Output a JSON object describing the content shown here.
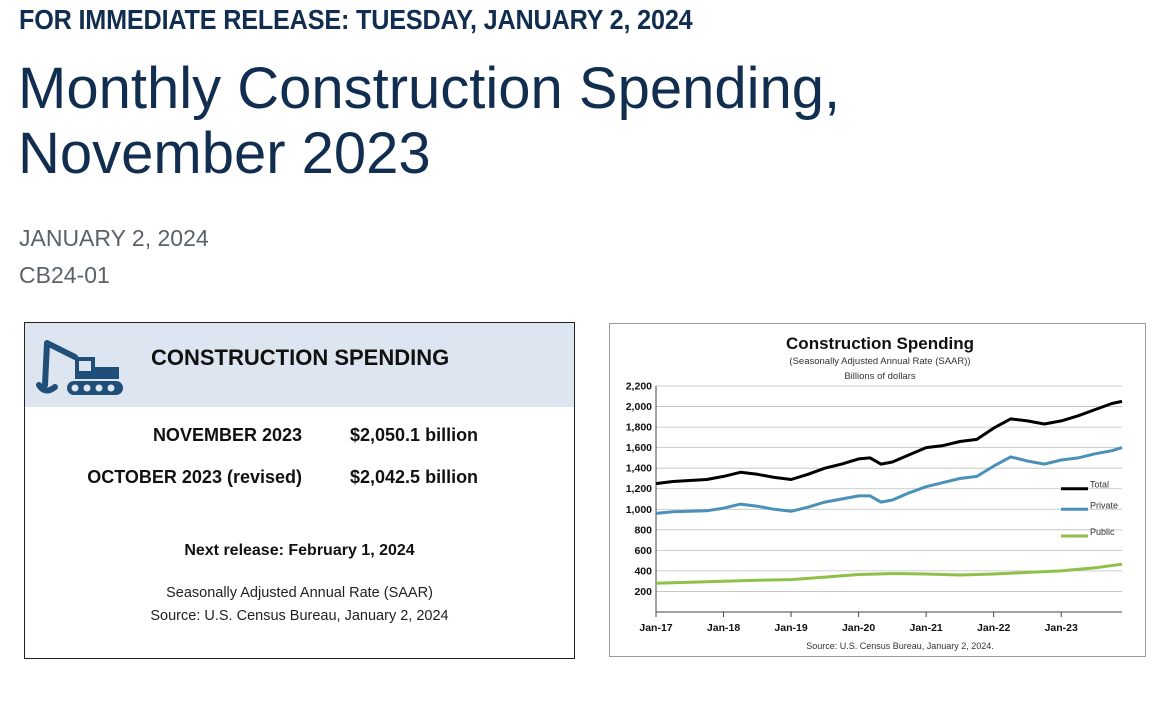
{
  "release_line": "FOR IMMEDIATE RELEASE: TUESDAY, JANUARY 2, 2024",
  "headline": "Monthly Construction Spending, November 2023",
  "date": "JANUARY 2, 2024",
  "release_code": "CB24-01",
  "info_box": {
    "title": "CONSTRUCTION SPENDING",
    "icon": "excavator-icon",
    "rows": [
      {
        "label": "NOVEMBER 2023",
        "value": "$2,050.1 billion"
      },
      {
        "label": "OCTOBER 2023 (revised)",
        "value": "$2,042.5 billion"
      }
    ],
    "next_release": "Next release: February 1, 2024",
    "footnote_1": "Seasonally Adjusted Annual Rate (SAAR)",
    "footnote_2": "Source: U.S. Census Bureau, January 2, 2024",
    "header_color": "#dde5f1",
    "icon_color": "#1f4e79"
  },
  "chart_data": {
    "type": "line",
    "title": "Construction Spending",
    "subtitle": "(Seasonally Adjusted Annual Rate (SAAR))",
    "ylabel": "Billions of dollars",
    "source": "Source: U.S. Census Bureau, January 2, 2024.",
    "ylim": [
      0,
      2200
    ],
    "yticks": [
      200,
      400,
      600,
      800,
      "1,000",
      "1,200",
      "1,400",
      "1,600",
      "1,800",
      "2,000",
      "2,200"
    ],
    "ytick_values": [
      200,
      400,
      600,
      800,
      1000,
      1200,
      1400,
      1600,
      1800,
      2000,
      2200
    ],
    "xticks": [
      "Jan-17",
      "Jan-18",
      "Jan-19",
      "Jan-20",
      "Jan-21",
      "Jan-22",
      "Jan-23"
    ],
    "xlim": [
      2017.0,
      2023.9
    ],
    "grid": true,
    "legend": "right",
    "series": [
      {
        "name": "Total",
        "color": "#000000",
        "x": [
          2017.0,
          2017.25,
          2017.5,
          2017.75,
          2018.0,
          2018.25,
          2018.5,
          2018.75,
          2019.0,
          2019.25,
          2019.5,
          2019.75,
          2020.0,
          2020.17,
          2020.33,
          2020.5,
          2020.75,
          2021.0,
          2021.25,
          2021.5,
          2021.75,
          2022.0,
          2022.25,
          2022.5,
          2022.75,
          2023.0,
          2023.25,
          2023.5,
          2023.75,
          2023.9
        ],
        "values": [
          1250,
          1270,
          1280,
          1290,
          1320,
          1360,
          1340,
          1310,
          1290,
          1340,
          1400,
          1440,
          1490,
          1500,
          1440,
          1460,
          1530,
          1600,
          1620,
          1660,
          1680,
          1790,
          1880,
          1860,
          1830,
          1860,
          1910,
          1970,
          2030,
          2050
        ]
      },
      {
        "name": "Private",
        "color": "#4a90b8",
        "x": [
          2017.0,
          2017.25,
          2017.5,
          2017.75,
          2018.0,
          2018.25,
          2018.5,
          2018.75,
          2019.0,
          2019.25,
          2019.5,
          2019.75,
          2020.0,
          2020.17,
          2020.33,
          2020.5,
          2020.75,
          2021.0,
          2021.25,
          2021.5,
          2021.75,
          2022.0,
          2022.25,
          2022.5,
          2022.75,
          2023.0,
          2023.25,
          2023.5,
          2023.75,
          2023.9
        ],
        "values": [
          960,
          975,
          980,
          985,
          1010,
          1050,
          1030,
          1000,
          980,
          1020,
          1070,
          1100,
          1130,
          1130,
          1070,
          1090,
          1160,
          1220,
          1260,
          1300,
          1320,
          1420,
          1510,
          1470,
          1440,
          1480,
          1500,
          1540,
          1570,
          1600
        ]
      },
      {
        "name": "Public",
        "color": "#8ec04a",
        "x": [
          2017.0,
          2017.5,
          2018.0,
          2018.5,
          2019.0,
          2019.5,
          2020.0,
          2020.5,
          2021.0,
          2021.5,
          2022.0,
          2022.5,
          2023.0,
          2023.5,
          2023.9
        ],
        "values": [
          280,
          290,
          300,
          310,
          315,
          340,
          365,
          375,
          370,
          360,
          370,
          385,
          400,
          430,
          465
        ]
      }
    ]
  }
}
